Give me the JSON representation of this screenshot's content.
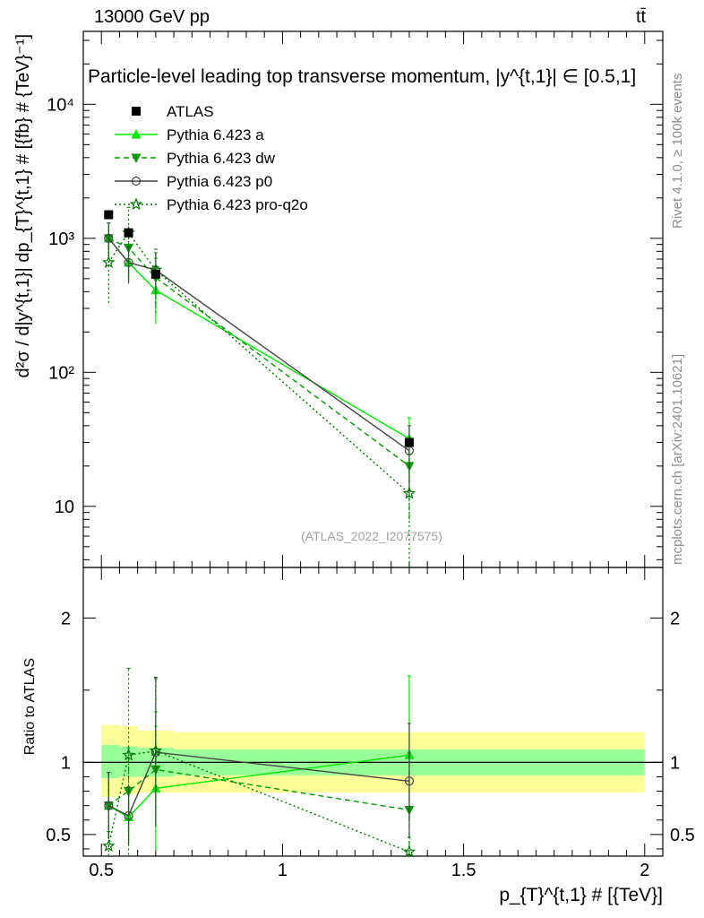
{
  "header": {
    "left": "13000 GeV pp",
    "right": "tt̄"
  },
  "side": {
    "rivet": "Rivet 4.1.0, ≥ 100k events",
    "mcplots": "mcplots.cern.ch [arXiv:2401.10621]"
  },
  "chart_data": {
    "type": "scatter",
    "title": "Particle-level leading top transverse momentum, |y^{t,1}| ∈ [0.5,1]",
    "analysis_id": "(ATLAS_2022_I2077575)",
    "xlabel": "p_{T}^{t,1} # [{TeV}]",
    "ylabel_top": "d²σ / d|y^{t,1}| dp_{T}^{t,1} # [{fb} # {TeV}⁻¹]",
    "ylabel_ratio": "Ratio to ATLAS",
    "xlim": [
      0.45,
      2.05
    ],
    "ylim_top": [
      3.5,
      35000
    ],
    "ylim_ratio": [
      0.35,
      2.35
    ],
    "yscale_top": "log",
    "x_ticks": [
      "0.5",
      "1",
      "1.5",
      "2"
    ],
    "y_ticks_top": [
      "10",
      "10²",
      "10³",
      "10⁴"
    ],
    "y_ticks_ratio": [
      "0.5",
      "1",
      "2"
    ],
    "x": [
      0.52,
      0.575,
      0.65,
      1.35
    ],
    "bin_edges": [
      0.5,
      0.55,
      0.6,
      0.7,
      2.0
    ],
    "reference": {
      "name": "ATLAS",
      "values": [
        1500,
        1100,
        540,
        30
      ],
      "ratio_band_inner": [
        [
          0.89,
          1.12
        ],
        [
          0.9,
          1.11
        ],
        [
          0.9,
          1.1
        ],
        [
          0.91,
          1.09
        ]
      ],
      "ratio_band_outer": [
        [
          0.76,
          1.26
        ],
        [
          0.78,
          1.25
        ],
        [
          0.79,
          1.22
        ],
        [
          0.79,
          1.21
        ]
      ]
    },
    "series": [
      {
        "name": "Pythia 6.423 a",
        "color": "#00e600",
        "dash": "solid",
        "marker": "triangle-up",
        "values": [
          1000,
          660,
          410,
          32
        ],
        "err_low": [
          300,
          200,
          180,
          16
        ],
        "err_high": [
          300,
          200,
          180,
          14
        ],
        "ratio": [
          0.7,
          0.62,
          0.82,
          1.05
        ],
        "ratio_err_low": [
          0.23,
          0.2,
          0.43,
          0.46
        ],
        "ratio_err_high": [
          0.23,
          0.2,
          0.43,
          0.55
        ]
      },
      {
        "name": "Pythia 6.423 dw",
        "color": "#009900",
        "dash": "dashed",
        "marker": "triangle-down",
        "values": [
          1000,
          850,
          510,
          20
        ],
        "err_low": [
          300,
          320,
          200,
          12
        ],
        "err_high": [
          300,
          320,
          200,
          12
        ],
        "ratio": [
          0.7,
          0.8,
          0.95,
          0.67
        ],
        "ratio_err_low": [
          0.23,
          0.3,
          0.4,
          0.4
        ],
        "ratio_err_high": [
          0.23,
          0.3,
          0.4,
          0.4
        ]
      },
      {
        "name": "Pythia 6.423 p0",
        "color": "#444444",
        "dash": "solid",
        "marker": "circle-open",
        "values": [
          1000,
          660,
          580,
          26
        ],
        "err_low": [
          300,
          200,
          200,
          14
        ],
        "err_high": [
          300,
          200,
          200,
          14
        ],
        "ratio": [
          0.7,
          0.63,
          1.07,
          0.87
        ],
        "ratio_err_low": [
          0.23,
          0.2,
          0.5,
          0.4
        ],
        "ratio_err_high": [
          0.23,
          0.2,
          0.52,
          0.4
        ]
      },
      {
        "name": "Pythia 6.423 pro-q2o",
        "color": "#007300",
        "dash": "dotted",
        "marker": "star",
        "values": [
          660,
          1100,
          580,
          12.5
        ],
        "err_low": [
          330,
          600,
          300,
          12
        ],
        "err_high": [
          330,
          600,
          250,
          12
        ],
        "ratio": [
          0.42,
          1.05,
          1.08,
          0.38
        ],
        "ratio_err_low": [
          0.1,
          0.69,
          0.52,
          0.1
        ],
        "ratio_err_high": [
          0.1,
          0.6,
          0.5,
          0.1
        ]
      }
    ]
  }
}
